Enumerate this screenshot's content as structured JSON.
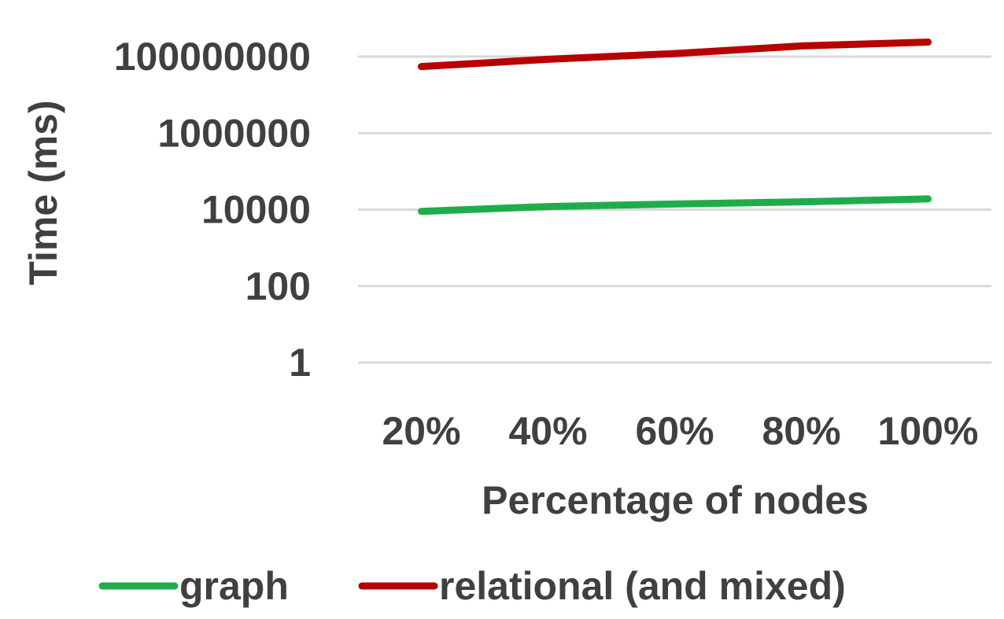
{
  "chart_data": {
    "type": "line",
    "title": "",
    "xlabel": "Percentage of nodes",
    "ylabel": "Time (ms)",
    "y_scale": "log",
    "ylim": [
      1,
      100000000
    ],
    "y_ticks": [
      1,
      100,
      10000,
      1000000,
      100000000
    ],
    "y_tick_labels": [
      "1",
      "100",
      "10000",
      "1000000",
      "100000000"
    ],
    "categories": [
      "20%",
      "40%",
      "60%",
      "80%",
      "100%"
    ],
    "series": [
      {
        "name": "graph",
        "color": "#1fad4b",
        "values": [
          9000,
          12000,
          14000,
          16000,
          19000
        ]
      },
      {
        "name": "relational (and mixed)",
        "color": "#b70000",
        "values": [
          55000000,
          85000000,
          120000000,
          190000000,
          240000000
        ]
      }
    ],
    "grid": true,
    "legend_position": "bottom"
  }
}
